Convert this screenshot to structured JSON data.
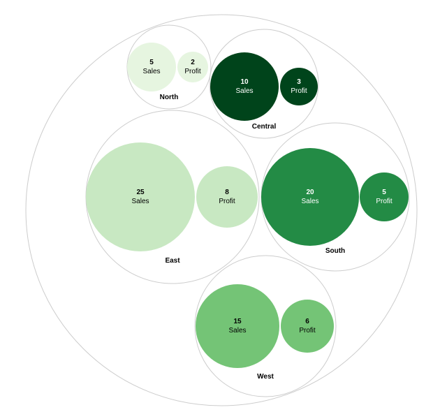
{
  "chart_data": {
    "type": "circle-packing",
    "metrics": [
      "Sales",
      "Profit"
    ],
    "groups": [
      {
        "name": "North",
        "values": {
          "Sales": 5,
          "Profit": 2
        },
        "color": "#e6f5e0",
        "text_color": "#000000"
      },
      {
        "name": "Central",
        "values": {
          "Sales": 10,
          "Profit": 3
        },
        "color": "#00441b",
        "text_color": "#ffffff"
      },
      {
        "name": "East",
        "values": {
          "Sales": 25,
          "Profit": 8
        },
        "color": "#c8e8c2",
        "text_color": "#000000"
      },
      {
        "name": "South",
        "values": {
          "Sales": 20,
          "Profit": 5
        },
        "color": "#238b45",
        "text_color": "#ffffff"
      },
      {
        "name": "West",
        "values": {
          "Sales": 15,
          "Profit": 6
        },
        "color": "#74c476",
        "text_color": "#000000"
      }
    ]
  }
}
